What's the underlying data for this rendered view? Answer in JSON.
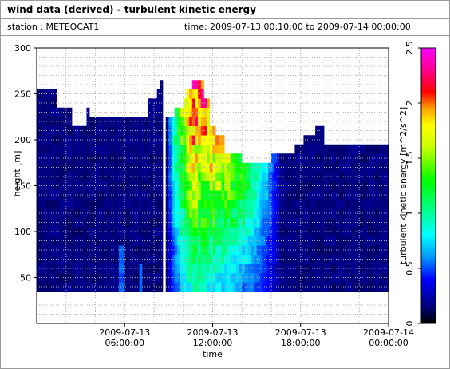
{
  "header": {
    "title": "wind data (derived) - turbulent kinetic energy",
    "station": "station : METEOCAT1",
    "time_range": "time: 2009-07-13 00:10:00 to 2009-07-14 00:00:00"
  },
  "chart_data": {
    "type": "heatmap",
    "xlabel": "time",
    "ylabel": "height [m]",
    "colorbar_label": "turbulent kinetic energy [m^2/s^2]",
    "x_ticks": [
      {
        "hour": 6,
        "line1": "2009-07-13",
        "line2": "06:00:00"
      },
      {
        "hour": 12,
        "line1": "2009-07-13",
        "line2": "12:00:00"
      },
      {
        "hour": 18,
        "line1": "2009-07-13",
        "line2": "18:00:00"
      },
      {
        "hour": 24,
        "line1": "2009-07-14",
        "line2": "00:00:00"
      }
    ],
    "y_ticks": [
      50,
      100,
      150,
      200,
      250,
      300
    ],
    "ylim": [
      0,
      300
    ],
    "xlim_hours": [
      0,
      24
    ],
    "colorbar_ticks": [
      0,
      0.5,
      1,
      1.5,
      2,
      2.5
    ],
    "clim": [
      0,
      2.5
    ],
    "data_floor_m": 35,
    "grid": true,
    "profile_top_m": [
      {
        "hour": 0.0,
        "top": 255
      },
      {
        "hour": 1.0,
        "top": 255
      },
      {
        "hour": 1.5,
        "top": 235
      },
      {
        "hour": 2.0,
        "top": 235
      },
      {
        "hour": 2.5,
        "top": 215
      },
      {
        "hour": 3.3,
        "top": 215
      },
      {
        "hour": 3.5,
        "top": 235
      },
      {
        "hour": 3.6,
        "top": 225
      },
      {
        "hour": 5.5,
        "top": 225
      },
      {
        "hour": 7.0,
        "top": 225
      },
      {
        "hour": 7.7,
        "top": 245
      },
      {
        "hour": 8.2,
        "top": 255
      },
      {
        "hour": 8.5,
        "top": 265
      },
      {
        "hour": 8.6,
        "top": 35
      },
      {
        "hour": 8.9,
        "top": 225
      },
      {
        "hour": 9.3,
        "top": 235
      },
      {
        "hour": 9.9,
        "top": 245
      },
      {
        "hour": 10.2,
        "top": 255
      },
      {
        "hour": 10.6,
        "top": 265
      },
      {
        "hour": 11.4,
        "top": 245
      },
      {
        "hour": 11.8,
        "top": 215
      },
      {
        "hour": 12.2,
        "top": 205
      },
      {
        "hour": 12.8,
        "top": 185
      },
      {
        "hour": 13.6,
        "top": 185
      },
      {
        "hour": 14.0,
        "top": 175
      },
      {
        "hour": 15.5,
        "top": 175
      },
      {
        "hour": 16.0,
        "top": 185
      },
      {
        "hour": 17.0,
        "top": 185
      },
      {
        "hour": 17.6,
        "top": 195
      },
      {
        "hour": 18.2,
        "top": 205
      },
      {
        "hour": 19.0,
        "top": 215
      },
      {
        "hour": 19.6,
        "top": 195
      },
      {
        "hour": 24.0,
        "top": 195
      }
    ],
    "active_period": {
      "start_hour": 8.9,
      "peak_hour": 10.7,
      "end_hour": 16.6,
      "peak_value": 2.5
    },
    "colormap": [
      {
        "v": 0.0,
        "color": "#000000"
      },
      {
        "v": 0.15,
        "color": "#00007a"
      },
      {
        "v": 0.4,
        "color": "#0000ff"
      },
      {
        "v": 0.6,
        "color": "#0096ff"
      },
      {
        "v": 0.8,
        "color": "#00ffff"
      },
      {
        "v": 1.05,
        "color": "#00ff80"
      },
      {
        "v": 1.3,
        "color": "#00ff00"
      },
      {
        "v": 1.6,
        "color": "#c8ff00"
      },
      {
        "v": 1.8,
        "color": "#ffff00"
      },
      {
        "v": 1.95,
        "color": "#ffa000"
      },
      {
        "v": 2.1,
        "color": "#ff0000"
      },
      {
        "v": 2.3,
        "color": "#ff0090"
      },
      {
        "v": 2.5,
        "color": "#ff00ff"
      }
    ]
  }
}
